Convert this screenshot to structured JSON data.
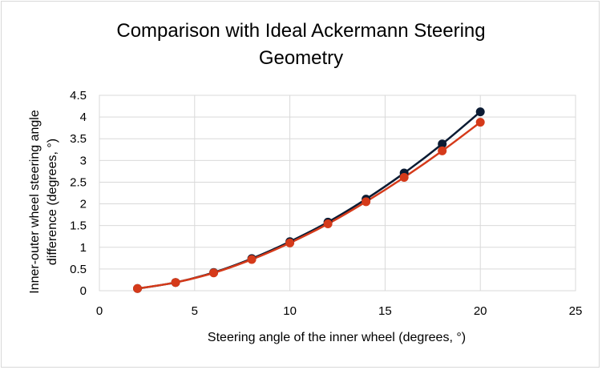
{
  "chart_data": {
    "type": "scatter",
    "title_line1": "Comparison with Ideal Ackermann Steering",
    "title_line2": "Geometry",
    "xlabel": "Steering angle of the inner wheel (degrees, °)",
    "ylabel_line1": "Inner-outer wheel steering angle",
    "ylabel_line2": "difference (degrees, °)",
    "xlim": [
      0,
      25
    ],
    "ylim": [
      0,
      4.5
    ],
    "x_ticks": [
      "0",
      "5",
      "10",
      "15",
      "20",
      "25"
    ],
    "y_ticks": [
      "0",
      "0.5",
      "1",
      "1.5",
      "2",
      "2.5",
      "3",
      "3.5",
      "4",
      "4.5"
    ],
    "grid": true,
    "legend": "none",
    "series": [
      {
        "color": "#0b1b33",
        "x": [
          2,
          4,
          6,
          8,
          10,
          12,
          14,
          16,
          18,
          20
        ],
        "y": [
          0.05,
          0.19,
          0.42,
          0.74,
          1.13,
          1.58,
          2.11,
          2.71,
          3.38,
          4.12
        ]
      },
      {
        "color": "#d53a1a",
        "x": [
          2,
          4,
          6,
          8,
          10,
          12,
          14,
          16,
          18,
          20
        ],
        "y": [
          0.05,
          0.19,
          0.41,
          0.72,
          1.1,
          1.54,
          2.05,
          2.61,
          3.22,
          3.88
        ]
      }
    ]
  }
}
